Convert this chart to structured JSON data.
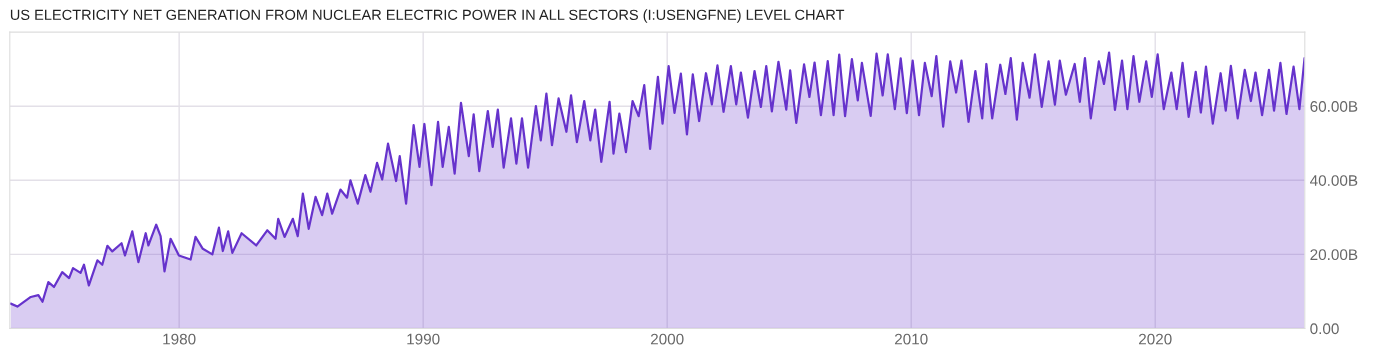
{
  "chart_data": {
    "type": "area",
    "title": "US ELECTRICITY NET GENERATION FROM NUCLEAR ELECTRIC POWER IN ALL SECTORS (I:USENGFNE) LEVEL CHART",
    "x": [
      1973.1,
      1973.37,
      1973.92,
      1974.23,
      1974.4,
      1974.64,
      1974.87,
      1975.21,
      1975.49,
      1975.65,
      1975.96,
      1976.1,
      1976.3,
      1976.65,
      1976.85,
      1977.06,
      1977.26,
      1977.64,
      1977.78,
      1978.08,
      1978.33,
      1978.63,
      1978.74,
      1979.06,
      1979.24,
      1979.4,
      1979.65,
      1979.99,
      1980.47,
      1980.67,
      1980.97,
      1981.36,
      1981.63,
      1981.79,
      1982.01,
      1982.18,
      1982.56,
      1983.16,
      1983.61,
      1983.95,
      1984.06,
      1984.32,
      1984.66,
      1984.86,
      1985.07,
      1985.31,
      1985.59,
      1985.86,
      1986.07,
      1986.27,
      1986.61,
      1986.88,
      1987.02,
      1987.32,
      1987.63,
      1987.84,
      1988.11,
      1988.32,
      1988.56,
      1988.89,
      1989.04,
      1989.3,
      1989.61,
      1989.85,
      1990.05,
      1990.34,
      1990.61,
      1990.8,
      1991.05,
      1991.29,
      1991.55,
      1991.87,
      1992.07,
      1992.3,
      1992.65,
      1992.85,
      1993.06,
      1993.3,
      1993.6,
      1993.82,
      1994.05,
      1994.3,
      1994.62,
      1994.82,
      1995.05,
      1995.28,
      1995.55,
      1995.87,
      1996.06,
      1996.3,
      1996.6,
      1996.85,
      1997.05,
      1997.3,
      1997.64,
      1997.8,
      1998.04,
      1998.31,
      1998.58,
      1998.83,
      1999.06,
      1999.3,
      1999.62,
      1999.81,
      2000.06,
      2000.3,
      2000.56,
      2000.81,
      2001.05,
      2001.31,
      2001.59,
      2001.83,
      2002.06,
      2002.31,
      2002.61,
      2002.83,
      2003.02,
      2003.31,
      2003.58,
      2003.84,
      2004.06,
      2004.29,
      2004.56,
      2004.88,
      2005.04,
      2005.29,
      2005.61,
      2005.83,
      2006.04,
      2006.3,
      2006.58,
      2006.82,
      2007.05,
      2007.29,
      2007.57,
      2007.81,
      2007.98,
      2008.34,
      2008.58,
      2008.83,
      2009.04,
      2009.33,
      2009.57,
      2009.82,
      2010.06,
      2010.32,
      2010.56,
      2010.84,
      2011.03,
      2011.31,
      2011.6,
      2011.84,
      2012.06,
      2012.35,
      2012.63,
      2012.91,
      2013.08,
      2013.32,
      2013.65,
      2013.86,
      2014.08,
      2014.33,
      2014.57,
      2014.85,
      2015.07,
      2015.35,
      2015.63,
      2015.89,
      2016.09,
      2016.34,
      2016.7,
      2016.91,
      2017.12,
      2017.36,
      2017.69,
      2017.9,
      2018.11,
      2018.35,
      2018.64,
      2018.86,
      2019.11,
      2019.35,
      2019.63,
      2019.86,
      2020.1,
      2020.35,
      2020.66,
      2020.88,
      2021.12,
      2021.37,
      2021.66,
      2021.87,
      2022.08,
      2022.36,
      2022.68,
      2022.89,
      2023.1,
      2023.38,
      2023.67,
      2023.92,
      2024.11,
      2024.38,
      2024.66,
      2024.87,
      2025.13,
      2025.38,
      2025.67,
      2025.91,
      2026.12
    ],
    "series": [
      {
        "color": "#6633cc",
        "values": [
          6.7,
          5.9,
          8.5,
          9.0,
          7.2,
          12.5,
          11.2,
          15.2,
          13.6,
          16.3,
          15.0,
          17.2,
          11.6,
          18.4,
          17.2,
          22.3,
          20.8,
          23.0,
          19.7,
          26.2,
          17.9,
          25.7,
          22.4,
          28.0,
          24.9,
          15.4,
          24.2,
          19.7,
          18.6,
          24.7,
          21.5,
          20.0,
          27.2,
          20.9,
          26.2,
          20.4,
          25.7,
          22.4,
          26.5,
          24.2,
          29.6,
          24.7,
          29.6,
          24.9,
          36.4,
          26.9,
          35.5,
          30.6,
          36.4,
          31.0,
          37.5,
          35.3,
          40.0,
          33.7,
          41.4,
          36.9,
          44.7,
          40.2,
          49.9,
          39.8,
          46.5,
          33.7,
          54.9,
          43.6,
          55.2,
          38.7,
          55.8,
          43.6,
          54.4,
          41.8,
          60.9,
          46.5,
          57.8,
          42.5,
          58.7,
          49.0,
          59.1,
          43.4,
          56.7,
          44.5,
          56.7,
          43.4,
          60.0,
          50.8,
          63.4,
          49.5,
          62.1,
          53.1,
          62.9,
          50.3,
          61.4,
          50.8,
          59.1,
          45.0,
          61.2,
          47.2,
          58.0,
          47.6,
          61.4,
          57.3,
          65.7,
          48.5,
          67.9,
          55.3,
          70.8,
          58.2,
          68.8,
          52.4,
          68.6,
          56.0,
          68.9,
          60.5,
          71.0,
          58.5,
          70.8,
          60.5,
          69.1,
          56.9,
          69.5,
          59.8,
          70.8,
          58.6,
          72.0,
          59.1,
          69.7,
          55.5,
          71.3,
          62.5,
          71.8,
          57.6,
          72.2,
          57.6,
          73.9,
          57.3,
          72.7,
          61.6,
          71.7,
          57.4,
          74.2,
          62.9,
          74.0,
          59.2,
          72.9,
          58.1,
          72.3,
          57.6,
          71.7,
          62.7,
          73.5,
          54.5,
          72.1,
          63.7,
          72.3,
          55.8,
          69.5,
          56.7,
          71.4,
          56.7,
          71.2,
          63.3,
          73.0,
          56.4,
          71.7,
          62.3,
          74.0,
          59.8,
          72.1,
          60.4,
          72.3,
          63.1,
          71.4,
          61.2,
          73.0,
          56.7,
          72.1,
          66.0,
          74.5,
          59.0,
          72.3,
          59.2,
          73.5,
          61.2,
          72.1,
          62.5,
          74.0,
          59.2,
          69.1,
          59.2,
          71.7,
          57.1,
          69.3,
          58.3,
          70.7,
          55.3,
          68.9,
          58.8,
          70.9,
          56.7,
          69.8,
          61.4,
          69.1,
          57.6,
          69.8,
          58.8,
          71.7,
          57.9,
          70.7,
          59.2,
          73.0
        ]
      }
    ],
    "xlim": [
      1973.06,
      2026.13
    ],
    "ylim": [
      0,
      80
    ],
    "xticks": [
      1980,
      1990,
      2000,
      2010,
      2020
    ],
    "yticks": [
      {
        "value": 0,
        "label": "0.00"
      },
      {
        "value": 20,
        "label": "20.00B"
      },
      {
        "value": 40,
        "label": "40.00B"
      },
      {
        "value": 60,
        "label": "60.00B"
      }
    ],
    "grid": true
  }
}
